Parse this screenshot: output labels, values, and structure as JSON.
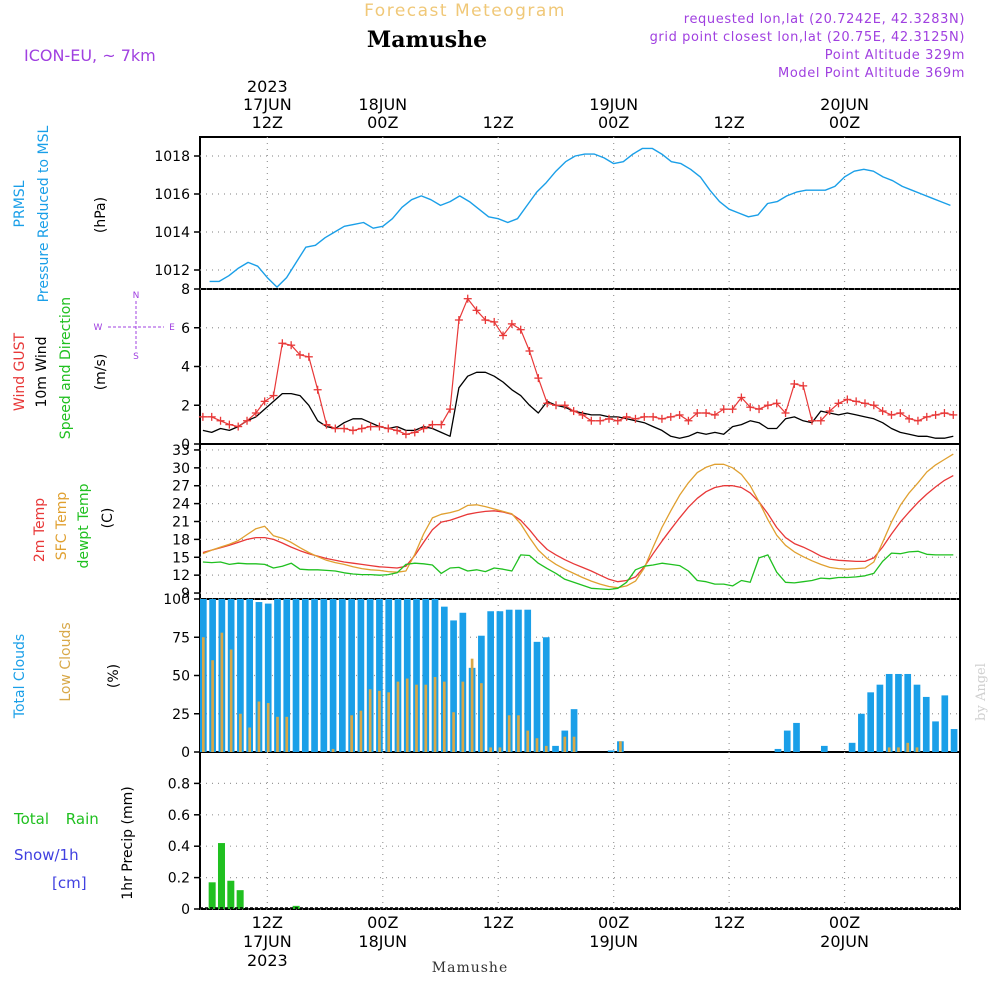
{
  "header": {
    "banner": "Forecast Meteogram",
    "location": "Mamushe",
    "model": "ICON-EU, ~ 7km",
    "requested": "requested lon,lat (20.7242E, 42.3283N)",
    "grid_point": "grid point closest lon,lat (20.75E, 42.3125N)",
    "point_alt": "Point Altitude 329m",
    "model_alt": "Model Point Altitude 369m",
    "footer_location": "Mamushe",
    "watermark": "by Angel"
  },
  "time_axis": {
    "top": [
      {
        "t": 12,
        "hour": "12Z",
        "date": "17JUN",
        "year": "2023"
      },
      {
        "t": 24,
        "hour": "00Z",
        "date": "18JUN"
      },
      {
        "t": 36,
        "hour": "12Z"
      },
      {
        "t": 48,
        "hour": "00Z",
        "date": "19JUN"
      },
      {
        "t": 60,
        "hour": "12Z"
      },
      {
        "t": 72,
        "hour": "00Z",
        "date": "20JUN"
      }
    ],
    "bottom": [
      {
        "t": 12,
        "hour": "12Z",
        "date": "17JUN",
        "year": "2023"
      },
      {
        "t": 24,
        "hour": "00Z",
        "date": "18JUN"
      },
      {
        "t": 36,
        "hour": "12Z"
      },
      {
        "t": 48,
        "hour": "00Z",
        "date": "19JUN"
      },
      {
        "t": 60,
        "hour": "12Z"
      },
      {
        "t": 72,
        "hour": "00Z",
        "date": "20JUN"
      }
    ]
  },
  "colors": {
    "frame": "#000000",
    "grid": "#999999",
    "pressure": "#1a9fe8",
    "gust": "#e83838",
    "wind": "#000000",
    "t2m": "#e83838",
    "sfc": "#e0a030",
    "dew": "#20c020",
    "total_clouds": "#1a9fe8",
    "low_clouds": "#d8a848",
    "rain": "#20c020",
    "snow": "#4040e0",
    "label_purple": "#a040e0",
    "banner": "#f0c878"
  },
  "chart_data": [
    {
      "type": "line",
      "panel": "pressure",
      "title": "",
      "ylabel": [
        "PRMSL",
        "Pressure Reduced to MSL",
        "(hPa)"
      ],
      "ylim": [
        1011,
        1019
      ],
      "yticks": [
        1012,
        1014,
        1016,
        1018
      ],
      "grid": true,
      "x_hours": [
        6,
        7,
        8,
        9,
        10,
        11,
        12,
        13,
        14,
        15,
        16,
        17,
        18,
        19,
        20,
        21,
        22,
        23,
        24,
        25,
        26,
        27,
        28,
        29,
        30,
        31,
        32,
        33,
        34,
        35,
        36,
        37,
        38,
        39,
        40,
        41,
        42,
        43,
        44,
        45,
        46,
        47,
        48,
        49,
        50,
        51,
        52,
        53,
        54,
        55,
        56,
        57,
        58,
        59,
        60,
        61,
        62,
        63,
        64,
        65,
        66,
        67,
        68,
        69,
        70,
        71,
        72,
        73,
        74,
        75,
        76,
        77,
        78,
        79,
        80,
        81,
        82,
        83
      ],
      "series": [
        {
          "key": "pressure",
          "values": [
            1011.4,
            1011.4,
            1011.7,
            1012.1,
            1012.4,
            1012.2,
            1011.6,
            1011.1,
            1011.6,
            1012.4,
            1013.2,
            1013.3,
            1013.7,
            1014.0,
            1014.3,
            1014.4,
            1014.5,
            1014.2,
            1014.3,
            1014.7,
            1015.3,
            1015.7,
            1015.9,
            1015.7,
            1015.4,
            1015.6,
            1015.9,
            1015.6,
            1015.2,
            1014.8,
            1014.7,
            1014.5,
            1014.7,
            1015.4,
            1016.1,
            1016.6,
            1017.2,
            1017.7,
            1018.0,
            1018.1,
            1018.1,
            1017.9,
            1017.6,
            1017.7,
            1018.1,
            1018.4,
            1018.4,
            1018.1,
            1017.7,
            1017.6,
            1017.3,
            1016.9,
            1016.2,
            1015.6,
            1015.2,
            1015.0,
            1014.8,
            1014.9,
            1015.5,
            1015.6,
            1015.9,
            1016.1,
            1016.2,
            1016.2,
            1016.2,
            1016.4,
            1016.9,
            1017.2,
            1017.3,
            1017.2,
            1016.9,
            1016.7,
            1016.4,
            1016.2,
            1016.0,
            1015.8,
            1015.6,
            1015.4
          ]
        }
      ]
    },
    {
      "type": "line",
      "panel": "wind",
      "title": "",
      "ylabel": [
        "Wind GUST",
        "10m Wind",
        "Speed and Direction",
        "(m/s)"
      ],
      "compass": [
        "N",
        "W",
        "E",
        "S"
      ],
      "ylim": [
        0,
        8
      ],
      "yticks": [
        0,
        2,
        4,
        6,
        8
      ],
      "grid": true,
      "series": [
        {
          "key": "gust",
          "marker": "+",
          "values": [
            1.4,
            1.4,
            1.2,
            1.0,
            0.9,
            1.2,
            1.6,
            2.2,
            2.5,
            5.2,
            5.1,
            4.6,
            4.5,
            2.8,
            1.0,
            0.8,
            0.8,
            0.7,
            0.8,
            0.9,
            0.9,
            0.8,
            0.7,
            0.5,
            0.6,
            0.8,
            1.0,
            1.0,
            1.8,
            6.4,
            7.5,
            6.9,
            6.4,
            6.3,
            5.6,
            6.2,
            5.9,
            4.8,
            3.4,
            2.1,
            2.0,
            2.0,
            1.7,
            1.5,
            1.2,
            1.2,
            1.3,
            1.2,
            1.4,
            1.3,
            1.4,
            1.4,
            1.3,
            1.4,
            1.5,
            1.2,
            1.6,
            1.6,
            1.5,
            1.8,
            1.8,
            2.4,
            1.9,
            1.8,
            2.0,
            2.1,
            1.6,
            3.1,
            3.0,
            1.2,
            1.2,
            1.7,
            2.1,
            2.3,
            2.2,
            2.1,
            2.0,
            1.7,
            1.5,
            1.6,
            1.3,
            1.2,
            1.4,
            1.5,
            1.6,
            1.5
          ]
        },
        {
          "key": "wind",
          "values": [
            0.7,
            0.6,
            0.8,
            0.7,
            0.9,
            1.2,
            1.4,
            1.8,
            2.2,
            2.6,
            2.6,
            2.5,
            2.0,
            1.2,
            0.9,
            0.8,
            1.1,
            1.3,
            1.3,
            1.1,
            0.9,
            0.8,
            0.9,
            0.7,
            0.7,
            0.9,
            0.8,
            0.6,
            0.4,
            2.9,
            3.5,
            3.7,
            3.7,
            3.5,
            3.2,
            2.8,
            2.5,
            2.0,
            1.6,
            2.2,
            2.0,
            1.9,
            1.7,
            1.6,
            1.5,
            1.5,
            1.4,
            1.4,
            1.3,
            1.2,
            1.1,
            0.9,
            0.7,
            0.4,
            0.3,
            0.4,
            0.6,
            0.5,
            0.6,
            0.5,
            0.9,
            1.0,
            1.2,
            1.1,
            0.8,
            0.8,
            1.3,
            1.4,
            1.2,
            1.1,
            1.7,
            1.6,
            1.5,
            1.6,
            1.5,
            1.4,
            1.3,
            1.1,
            0.8,
            0.6,
            0.5,
            0.4,
            0.4,
            0.3,
            0.3,
            0.4
          ]
        }
      ]
    },
    {
      "type": "line",
      "panel": "temperature",
      "title": "",
      "ylabel": [
        "2m Temp",
        "SFC Temp",
        "dewpt Temp",
        "(C)"
      ],
      "ylim": [
        8,
        34
      ],
      "yticks": [
        9,
        12,
        15,
        18,
        21,
        24,
        27,
        30,
        33
      ],
      "grid": true,
      "series": [
        {
          "key": "t2m",
          "values": [
            15.8,
            16.2,
            16.6,
            17.0,
            17.5,
            18.0,
            18.3,
            18.3,
            18.0,
            17.4,
            16.7,
            16.1,
            15.6,
            15.2,
            14.8,
            14.5,
            14.2,
            14.0,
            13.8,
            13.6,
            13.4,
            13.3,
            13.2,
            13.5,
            15.3,
            17.5,
            19.6,
            20.9,
            21.2,
            21.7,
            22.2,
            22.5,
            22.7,
            22.8,
            22.6,
            22.2,
            21.2,
            19.6,
            17.8,
            16.3,
            15.4,
            14.6,
            13.9,
            13.3,
            12.7,
            12.0,
            11.3,
            10.9,
            11.1,
            11.7,
            13.4,
            15.6,
            17.7,
            19.7,
            21.6,
            23.4,
            24.9,
            26.0,
            26.7,
            27.0,
            27.0,
            26.7,
            25.8,
            24.3,
            22.3,
            20.0,
            18.3,
            17.3,
            16.7,
            16.0,
            15.2,
            14.7,
            14.5,
            14.4,
            14.3,
            14.3,
            14.9,
            16.7,
            18.9,
            20.9,
            22.6,
            24.2,
            25.6,
            26.8,
            27.9,
            28.7
          ]
        },
        {
          "key": "sfc",
          "values": [
            15.6,
            16.2,
            16.7,
            17.2,
            17.8,
            18.8,
            19.8,
            20.2,
            18.6,
            18.2,
            17.5,
            16.6,
            15.8,
            15.1,
            14.5,
            14.1,
            13.8,
            13.4,
            13.1,
            12.9,
            12.8,
            12.6,
            12.5,
            12.7,
            15.5,
            18.9,
            21.6,
            22.2,
            22.5,
            22.9,
            23.7,
            23.8,
            23.5,
            23.1,
            22.7,
            22.3,
            20.6,
            18.3,
            16.2,
            14.8,
            13.8,
            13.0,
            12.3,
            11.6,
            11.0,
            10.5,
            10.1,
            9.9,
            10.2,
            11.0,
            13.2,
            16.7,
            20.0,
            22.8,
            25.4,
            27.5,
            29.2,
            30.1,
            30.6,
            30.6,
            30.0,
            28.9,
            27.0,
            24.3,
            21.3,
            18.7,
            17.0,
            15.9,
            15.1,
            14.4,
            13.8,
            13.3,
            13.1,
            13.0,
            13.1,
            13.2,
            14.2,
            17.5,
            20.9,
            23.7,
            25.8,
            27.5,
            29.3,
            30.5,
            31.4,
            32.3
          ]
        },
        {
          "key": "dew",
          "values": [
            14.2,
            14.1,
            14.2,
            13.8,
            14.0,
            13.9,
            13.9,
            13.8,
            13.2,
            13.5,
            14.0,
            13.0,
            12.9,
            12.9,
            12.8,
            12.7,
            12.4,
            12.2,
            12.1,
            12.1,
            12.0,
            12.1,
            12.4,
            13.8,
            14.0,
            13.9,
            13.7,
            12.3,
            13.2,
            13.3,
            12.7,
            12.9,
            12.6,
            13.2,
            13.0,
            12.7,
            15.4,
            15.3,
            14.0,
            13.1,
            12.3,
            11.3,
            10.8,
            10.3,
            9.8,
            9.7,
            9.6,
            9.8,
            10.8,
            12.9,
            13.5,
            13.7,
            14.0,
            13.8,
            13.6,
            12.7,
            11.1,
            10.9,
            10.5,
            10.5,
            10.2,
            11.1,
            10.8,
            14.9,
            15.4,
            12.5,
            10.8,
            10.7,
            10.9,
            11.1,
            11.5,
            11.4,
            11.6,
            11.6,
            11.7,
            11.9,
            12.3,
            14.3,
            15.7,
            15.6,
            15.9,
            16.0,
            15.5,
            15.4,
            15.4,
            15.4
          ]
        }
      ]
    },
    {
      "type": "bar",
      "panel": "clouds",
      "title": "",
      "ylabel": [
        "Total Clouds",
        "Low Clouds",
        "(%)"
      ],
      "ylim": [
        0,
        100
      ],
      "yticks": [
        0,
        25,
        50,
        75,
        100
      ],
      "grid": true,
      "series": [
        {
          "key": "total_clouds",
          "values": [
            100,
            100,
            100,
            100,
            100,
            100,
            98,
            97,
            100,
            100,
            100,
            100,
            100,
            100,
            100,
            100,
            100,
            100,
            100,
            100,
            100,
            100,
            100,
            100,
            100,
            100,
            95,
            86,
            91,
            55,
            76,
            92,
            92,
            93,
            93,
            93,
            72,
            75,
            4,
            14,
            28,
            0,
            0,
            0,
            1,
            7,
            0,
            0,
            0,
            0,
            0,
            0,
            0,
            0,
            0,
            0,
            0,
            0,
            0,
            0,
            0,
            0,
            2,
            14,
            19,
            0,
            0,
            4,
            0,
            0,
            6,
            25,
            39,
            44,
            51,
            51,
            51,
            44,
            36,
            20,
            37,
            15
          ]
        },
        {
          "key": "low_clouds",
          "values": [
            75,
            60,
            78,
            67,
            25,
            16,
            33,
            32,
            23,
            23,
            0,
            0,
            0,
            0,
            2,
            0,
            24,
            27,
            41,
            40,
            39,
            46,
            48,
            44,
            44,
            49,
            46,
            26,
            46,
            61,
            45,
            3,
            3,
            24,
            24,
            14,
            9,
            4,
            0,
            10,
            10,
            0,
            0,
            0,
            0,
            7,
            0,
            0,
            0,
            0,
            0,
            0,
            0,
            0,
            0,
            0,
            0,
            0,
            0,
            0,
            0,
            0,
            0,
            0,
            0,
            0,
            0,
            0,
            0,
            0,
            0,
            0,
            0,
            0,
            3,
            3,
            6,
            3,
            0,
            0,
            0,
            0
          ]
        }
      ]
    },
    {
      "type": "bar",
      "panel": "precip",
      "title": "",
      "ylabel": [
        "Total Rain",
        "Snow/1h",
        "[cm]",
        "1hr Precip (mm)"
      ],
      "ylim": [
        0,
        1.0
      ],
      "yticks": [
        0,
        0.2,
        0.4,
        0.6,
        0.8
      ],
      "ytick_labels": [
        "0",
        "0.2",
        "0.4",
        "0.6",
        "0.8"
      ],
      "grid": true,
      "series": [
        {
          "key": "rain",
          "values": [
            0.17,
            0.42,
            0.18,
            0.12,
            0,
            0,
            0,
            0,
            0,
            0.02
          ]
        }
      ]
    }
  ]
}
